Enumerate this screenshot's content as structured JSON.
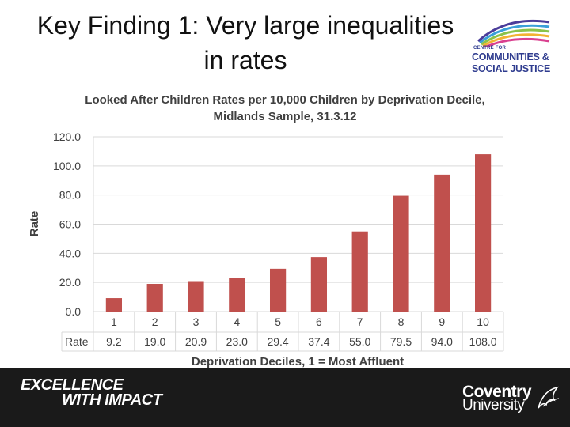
{
  "slide": {
    "title_line1": "Key Finding 1: Very large inequalities",
    "title_line2": "in rates"
  },
  "logo": {
    "small": "CENTRE FOR",
    "line1": "COMMUNITIES &",
    "line2": "SOCIAL JUSTICE"
  },
  "footer": {
    "line1": "EXCELLENCE",
    "line2": "WITH IMPACT",
    "brand1": "Coventry",
    "brand2": "University"
  },
  "colors": {
    "bar": "#c0504d",
    "grid": "#d9d9d9",
    "axis_text": "#404040",
    "footer_bg": "#1a1a1a",
    "logo_blue": "#2f3c8f"
  },
  "chart_data": {
    "type": "bar",
    "title_line1": "Looked After Children Rates per 10,000 Children by Deprivation Decile,",
    "title_line2": "Midlands Sample, 31.3.12",
    "xlabel": "Deprivation Deciles, 1 = Most Affluent",
    "ylabel": "Rate",
    "categories": [
      "1",
      "2",
      "3",
      "4",
      "5",
      "6",
      "7",
      "8",
      "9",
      "10"
    ],
    "series": [
      {
        "name": "Rate",
        "values": [
          9.2,
          19.0,
          20.9,
          23.0,
          29.4,
          37.4,
          55.0,
          79.5,
          94.0,
          108.0
        ]
      }
    ],
    "table_labels": [
      "9.2",
      "19.0",
      "20.9",
      "23.0",
      "29.4",
      "37.4",
      "55.0",
      "79.5",
      "94.0",
      "108.0"
    ],
    "yticks": [
      "0.0",
      "20.0",
      "40.0",
      "60.0",
      "80.0",
      "100.0",
      "120.0"
    ],
    "ylim": [
      0,
      120
    ],
    "grid": true,
    "data_table": true
  }
}
